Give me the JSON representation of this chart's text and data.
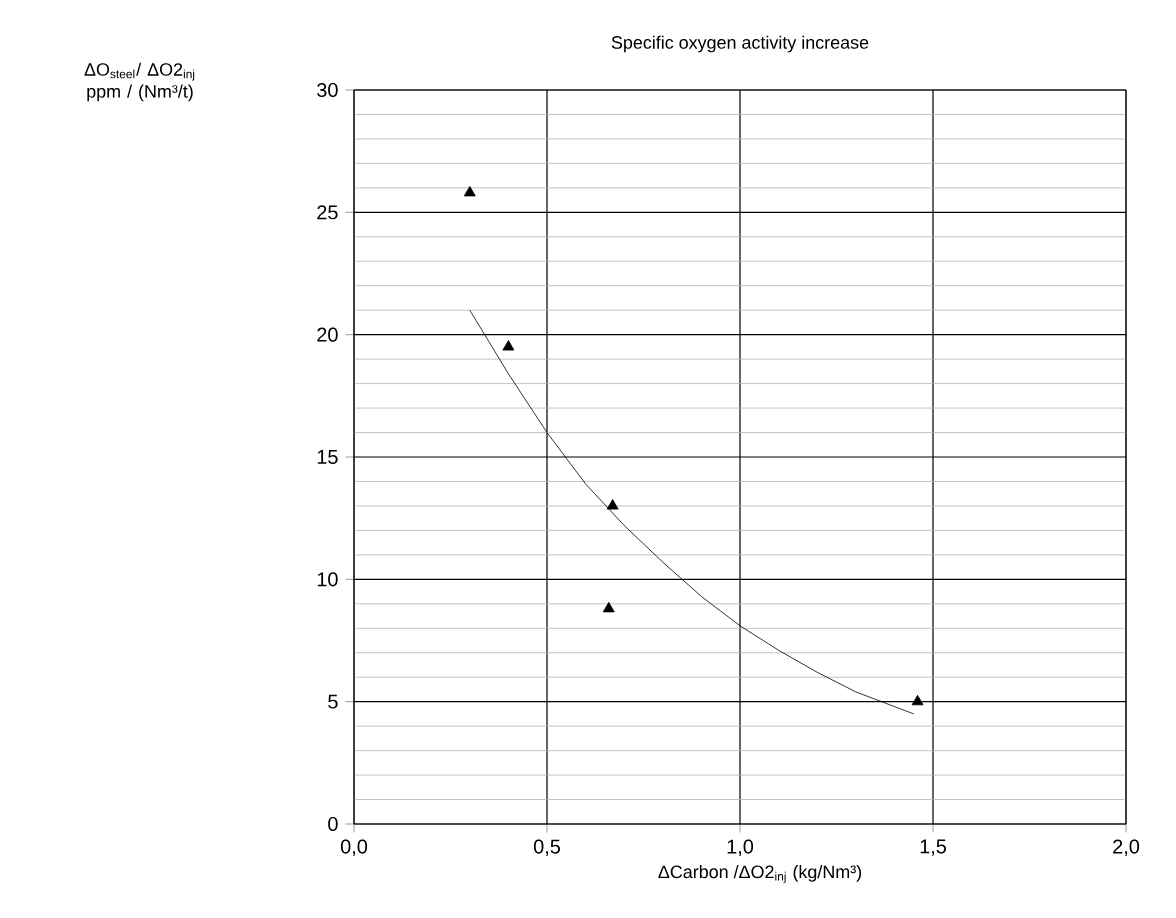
{
  "chart_data": {
    "type": "scatter",
    "title": "Specific oxygen activity increase",
    "annotations": [
      "ΔO$_{steel}$/ ΔO2$_{inj}$ ppm / (Nm³/t)"
    ],
    "xlabel": "ΔCarbon /ΔO2$_{inj}$  (kg/Nm³)",
    "series": [
      {
        "type": "scatter",
        "color": "#000000",
        "marker": "triangle",
        "x": [
          0.3,
          0.4,
          0.67,
          0.66,
          1.46
        ],
        "values": [
          25.8,
          19.5,
          13.0,
          8.8,
          5.0
        ]
      },
      {
        "type": "line",
        "color": "#000000",
        "marker": "none",
        "line_style": "solid",
        "x": [
          0.3,
          0.4,
          0.5,
          0.6,
          0.7,
          0.8,
          0.9,
          1.0,
          1.1,
          1.2,
          1.3,
          1.45
        ],
        "values": [
          21.0,
          18.4,
          16.0,
          13.9,
          12.2,
          10.7,
          9.3,
          8.1,
          7.1,
          6.2,
          5.4,
          4.5
        ]
      }
    ],
    "xlim": [
      0,
      2
    ],
    "ylim": [
      0,
      30
    ],
    "xticks": [
      {
        "value": 0,
        "label": "0,0"
      },
      {
        "value": 0.5,
        "label": "0,5"
      },
      {
        "value": 1,
        "label": "1,0"
      },
      {
        "value": 1.5,
        "label": "1,5"
      },
      {
        "value": 2,
        "label": "2,0"
      }
    ],
    "yticks": [
      0,
      5,
      10,
      15,
      20,
      25,
      30
    ],
    "grid": true
  }
}
